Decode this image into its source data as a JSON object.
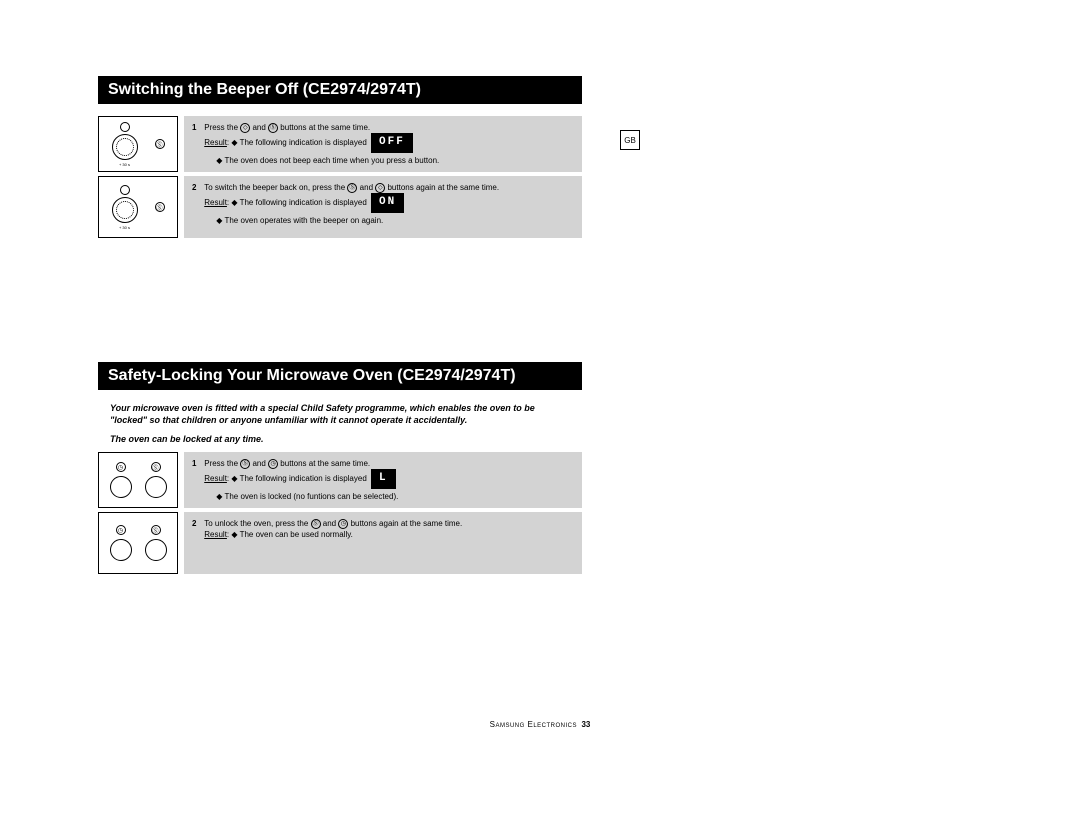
{
  "gb_label": "GB",
  "section1": {
    "title": "Switching the Beeper Off (CE2974/2974T)",
    "dial_label": "+ 30 s",
    "step1": {
      "num": "1",
      "t1": "Press the ",
      "t2": " and ",
      "t3": " buttons at the same time.",
      "result_label": "Result",
      "result_text": ": ◆ The following indication is displayed",
      "display": "OFF",
      "bullet": "◆ The oven does not beep each time when you press a button."
    },
    "step2": {
      "num": "2",
      "t1": "To switch the beeper back on, press the ",
      "t2": " and ",
      "t3": " buttons again at the same time.",
      "result_label": "Result",
      "result_text": ": ◆ The following indication is displayed",
      "display": "ON",
      "bullet": "◆ The oven operates with the beeper on again."
    }
  },
  "section2": {
    "title": "Safety-Locking Your Microwave Oven (CE2974/2974T)",
    "intro": "Your microwave oven is fitted with a special Child Safety programme, which enables the oven to be \"locked\" so that children or anyone unfamiliar with it cannot operate it accidentally.",
    "subintro": "The oven can be locked at any time.",
    "step1": {
      "num": "1",
      "t1": "Press the ",
      "t2": " and ",
      "t3": " buttons at the same time.",
      "result_label": "Result",
      "result_text": ": ◆ The following indication is displayed",
      "display": "L",
      "bullet": "◆ The oven is locked (no funtions can be selected)."
    },
    "step2": {
      "num": "2",
      "t1": "To unlock the oven, press the ",
      "t2": " and ",
      "t3": " buttons again at the same time.",
      "result_label": "Result",
      "result_text": ": ◆ The oven can be used normally."
    }
  },
  "footer": {
    "brand": "Samsung Electronics",
    "page": "33"
  },
  "icons": {
    "diamond": "◇",
    "stop": "Ⓢ",
    "clock": "◷"
  }
}
